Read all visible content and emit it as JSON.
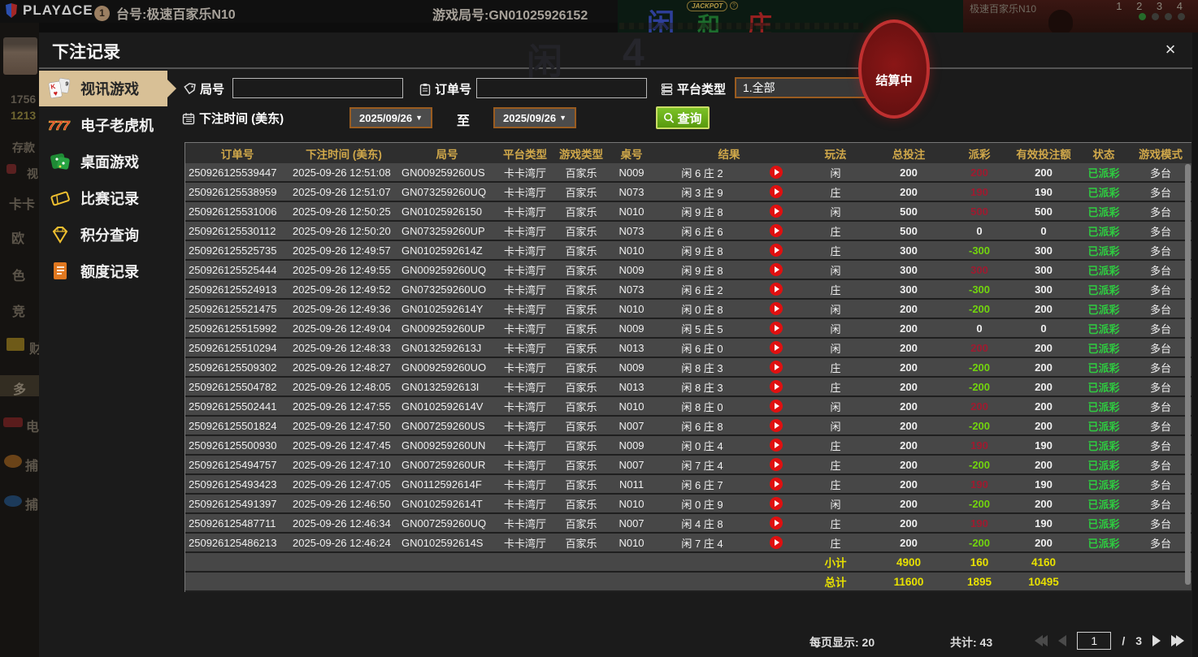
{
  "background": {
    "brand": "PLAYΔCE",
    "info_badge": "1",
    "table_label": "台号:极速百家乐N10",
    "round_label": "游戏局号:GN01025926152",
    "bet_areas": [
      "闲",
      "和",
      "庄"
    ],
    "jackpot_label": "JACKPOT",
    "jackpot_help": "?",
    "settling_label": "结算中",
    "video_title": "极速百家乐N10",
    "video_nums": "1 2 3 4",
    "ghost_glyphs": [
      "闲",
      "4"
    ],
    "left_rail": {
      "items": [
        "1756",
        "1213",
        "存款",
        "视",
        "卡卡",
        "欧",
        "色",
        "竞",
        "财",
        "多",
        "电",
        "捕",
        "捕"
      ]
    }
  },
  "modal": {
    "title": "下注记录",
    "close_label": "×",
    "sidebar": {
      "items": [
        {
          "label": "视讯游戏",
          "icon": "cards-icon",
          "active": true
        },
        {
          "label": "电子老虎机",
          "icon": "slot-777-icon",
          "active": false
        },
        {
          "label": "桌面游戏",
          "icon": "dice-icon",
          "active": false
        },
        {
          "label": "比赛记录",
          "icon": "ticket-icon",
          "active": false
        },
        {
          "label": "积分查询",
          "icon": "diamond-icon",
          "active": false
        },
        {
          "label": "额度记录",
          "icon": "document-icon",
          "active": false
        }
      ]
    },
    "filters": {
      "round_label": "局号",
      "round_value": "",
      "order_label": "订单号",
      "order_value": "",
      "platform_label": "平台类型",
      "platform_value": "1.全部",
      "caret": "▼",
      "bet_time_label": "下注时间 (美东)",
      "date_from": "2025/09/26",
      "to_label": "至",
      "date_to": "2025/09/26",
      "search_label": "查询"
    },
    "table": {
      "headers": [
        "订单号",
        "下注时间 (美东)",
        "局号",
        "平台类型",
        "游戏类型",
        "桌号",
        "结果",
        "玩法",
        "总投注",
        "派彩",
        "有效投注额",
        "状态",
        "游戏模式"
      ],
      "rows": [
        {
          "order_id": "250926125539447",
          "bet_time": "2025-09-26 12:51:08",
          "round_id": "GN009259260US",
          "platform": "卡卡湾厅",
          "game_type": "百家乐",
          "table_no": "N009",
          "result": "闲 6 庄 2",
          "play": "闲",
          "total_bet": "200",
          "payout": "200",
          "payout_type": "win",
          "valid_bet": "200",
          "status": "已派彩",
          "mode": "多台"
        },
        {
          "order_id": "250926125538959",
          "bet_time": "2025-09-26 12:51:07",
          "round_id": "GN073259260UQ",
          "platform": "卡卡湾厅",
          "game_type": "百家乐",
          "table_no": "N073",
          "result": "闲 3 庄 9",
          "play": "庄",
          "total_bet": "200",
          "payout": "190",
          "payout_type": "win",
          "valid_bet": "190",
          "status": "已派彩",
          "mode": "多台"
        },
        {
          "order_id": "250926125531006",
          "bet_time": "2025-09-26 12:50:25",
          "round_id": "GN01025926150",
          "platform": "卡卡湾厅",
          "game_type": "百家乐",
          "table_no": "N010",
          "result": "闲 9 庄 8",
          "play": "闲",
          "total_bet": "500",
          "payout": "500",
          "payout_type": "win",
          "valid_bet": "500",
          "status": "已派彩",
          "mode": "多台"
        },
        {
          "order_id": "250926125530112",
          "bet_time": "2025-09-26 12:50:20",
          "round_id": "GN073259260UP",
          "platform": "卡卡湾厅",
          "game_type": "百家乐",
          "table_no": "N073",
          "result": "闲 6 庄 6",
          "play": "庄",
          "total_bet": "500",
          "payout": "0",
          "payout_type": "zero",
          "valid_bet": "0",
          "status": "已派彩",
          "mode": "多台"
        },
        {
          "order_id": "250926125525735",
          "bet_time": "2025-09-26 12:49:57",
          "round_id": "GN0102592614Z",
          "platform": "卡卡湾厅",
          "game_type": "百家乐",
          "table_no": "N010",
          "result": "闲 9 庄 8",
          "play": "庄",
          "total_bet": "300",
          "payout": "-300",
          "payout_type": "loss",
          "valid_bet": "300",
          "status": "已派彩",
          "mode": "多台"
        },
        {
          "order_id": "250926125525444",
          "bet_time": "2025-09-26 12:49:55",
          "round_id": "GN009259260UQ",
          "platform": "卡卡湾厅",
          "game_type": "百家乐",
          "table_no": "N009",
          "result": "闲 9 庄 8",
          "play": "闲",
          "total_bet": "300",
          "payout": "300",
          "payout_type": "win",
          "valid_bet": "300",
          "status": "已派彩",
          "mode": "多台"
        },
        {
          "order_id": "250926125524913",
          "bet_time": "2025-09-26 12:49:52",
          "round_id": "GN073259260UO",
          "platform": "卡卡湾厅",
          "game_type": "百家乐",
          "table_no": "N073",
          "result": "闲 6 庄 2",
          "play": "庄",
          "total_bet": "300",
          "payout": "-300",
          "payout_type": "loss",
          "valid_bet": "300",
          "status": "已派彩",
          "mode": "多台"
        },
        {
          "order_id": "250926125521475",
          "bet_time": "2025-09-26 12:49:36",
          "round_id": "GN0102592614Y",
          "platform": "卡卡湾厅",
          "game_type": "百家乐",
          "table_no": "N010",
          "result": "闲 0 庄 8",
          "play": "闲",
          "total_bet": "200",
          "payout": "-200",
          "payout_type": "loss",
          "valid_bet": "200",
          "status": "已派彩",
          "mode": "多台"
        },
        {
          "order_id": "250926125515992",
          "bet_time": "2025-09-26 12:49:04",
          "round_id": "GN009259260UP",
          "platform": "卡卡湾厅",
          "game_type": "百家乐",
          "table_no": "N009",
          "result": "闲 5 庄 5",
          "play": "闲",
          "total_bet": "200",
          "payout": "0",
          "payout_type": "zero",
          "valid_bet": "0",
          "status": "已派彩",
          "mode": "多台"
        },
        {
          "order_id": "250926125510294",
          "bet_time": "2025-09-26 12:48:33",
          "round_id": "GN0132592613J",
          "platform": "卡卡湾厅",
          "game_type": "百家乐",
          "table_no": "N013",
          "result": "闲 6 庄 0",
          "play": "闲",
          "total_bet": "200",
          "payout": "200",
          "payout_type": "win",
          "valid_bet": "200",
          "status": "已派彩",
          "mode": "多台"
        },
        {
          "order_id": "250926125509302",
          "bet_time": "2025-09-26 12:48:27",
          "round_id": "GN009259260UO",
          "platform": "卡卡湾厅",
          "game_type": "百家乐",
          "table_no": "N009",
          "result": "闲 8 庄 3",
          "play": "庄",
          "total_bet": "200",
          "payout": "-200",
          "payout_type": "loss",
          "valid_bet": "200",
          "status": "已派彩",
          "mode": "多台"
        },
        {
          "order_id": "250926125504782",
          "bet_time": "2025-09-26 12:48:05",
          "round_id": "GN0132592613I",
          "platform": "卡卡湾厅",
          "game_type": "百家乐",
          "table_no": "N013",
          "result": "闲 8 庄 3",
          "play": "庄",
          "total_bet": "200",
          "payout": "-200",
          "payout_type": "loss",
          "valid_bet": "200",
          "status": "已派彩",
          "mode": "多台"
        },
        {
          "order_id": "250926125502441",
          "bet_time": "2025-09-26 12:47:55",
          "round_id": "GN0102592614V",
          "platform": "卡卡湾厅",
          "game_type": "百家乐",
          "table_no": "N010",
          "result": "闲 8 庄 0",
          "play": "闲",
          "total_bet": "200",
          "payout": "200",
          "payout_type": "win",
          "valid_bet": "200",
          "status": "已派彩",
          "mode": "多台"
        },
        {
          "order_id": "250926125501824",
          "bet_time": "2025-09-26 12:47:50",
          "round_id": "GN007259260US",
          "platform": "卡卡湾厅",
          "game_type": "百家乐",
          "table_no": "N007",
          "result": "闲 6 庄 8",
          "play": "闲",
          "total_bet": "200",
          "payout": "-200",
          "payout_type": "loss",
          "valid_bet": "200",
          "status": "已派彩",
          "mode": "多台"
        },
        {
          "order_id": "250926125500930",
          "bet_time": "2025-09-26 12:47:45",
          "round_id": "GN009259260UN",
          "platform": "卡卡湾厅",
          "game_type": "百家乐",
          "table_no": "N009",
          "result": "闲 0 庄 4",
          "play": "庄",
          "total_bet": "200",
          "payout": "190",
          "payout_type": "win",
          "valid_bet": "190",
          "status": "已派彩",
          "mode": "多台"
        },
        {
          "order_id": "250926125494757",
          "bet_time": "2025-09-26 12:47:10",
          "round_id": "GN007259260UR",
          "platform": "卡卡湾厅",
          "game_type": "百家乐",
          "table_no": "N007",
          "result": "闲 7 庄 4",
          "play": "庄",
          "total_bet": "200",
          "payout": "-200",
          "payout_type": "loss",
          "valid_bet": "200",
          "status": "已派彩",
          "mode": "多台"
        },
        {
          "order_id": "250926125493423",
          "bet_time": "2025-09-26 12:47:05",
          "round_id": "GN0112592614F",
          "platform": "卡卡湾厅",
          "game_type": "百家乐",
          "table_no": "N011",
          "result": "闲 6 庄 7",
          "play": "庄",
          "total_bet": "200",
          "payout": "190",
          "payout_type": "win",
          "valid_bet": "190",
          "status": "已派彩",
          "mode": "多台"
        },
        {
          "order_id": "250926125491397",
          "bet_time": "2025-09-26 12:46:50",
          "round_id": "GN0102592614T",
          "platform": "卡卡湾厅",
          "game_type": "百家乐",
          "table_no": "N010",
          "result": "闲 0 庄 9",
          "play": "闲",
          "total_bet": "200",
          "payout": "-200",
          "payout_type": "loss",
          "valid_bet": "200",
          "status": "已派彩",
          "mode": "多台"
        },
        {
          "order_id": "250926125487711",
          "bet_time": "2025-09-26 12:46:34",
          "round_id": "GN007259260UQ",
          "platform": "卡卡湾厅",
          "game_type": "百家乐",
          "table_no": "N007",
          "result": "闲 4 庄 8",
          "play": "庄",
          "total_bet": "200",
          "payout": "190",
          "payout_type": "win",
          "valid_bet": "190",
          "status": "已派彩",
          "mode": "多台"
        },
        {
          "order_id": "250926125486213",
          "bet_time": "2025-09-26 12:46:24",
          "round_id": "GN0102592614S",
          "platform": "卡卡湾厅",
          "game_type": "百家乐",
          "table_no": "N010",
          "result": "闲 7 庄 4",
          "play": "庄",
          "total_bet": "200",
          "payout": "-200",
          "payout_type": "loss",
          "valid_bet": "200",
          "status": "已派彩",
          "mode": "多台"
        }
      ],
      "subtotal": {
        "label": "小计",
        "total_bet": "4900",
        "payout": "160",
        "valid_bet": "4160"
      },
      "grand_total": {
        "label": "总计",
        "total_bet": "11600",
        "payout": "1895",
        "valid_bet": "10495"
      }
    },
    "pagination": {
      "per_page_label": "每页显示: 20",
      "total_label": "共计: 43",
      "current_page": "1",
      "separator": "/",
      "total_pages": "3"
    }
  },
  "colors": {
    "accent_gold": "#d0a84a",
    "active_tab_bg": "#d8c096",
    "status_green": "#2ecc40",
    "payout_win_red": "#9e1b30",
    "payout_loss_green": "#72d40e",
    "totals_yellow": "#e8e100",
    "search_button_green": "#6ab519",
    "filter_border_orange": "#9a5c20",
    "settling_red": "#c03030"
  }
}
